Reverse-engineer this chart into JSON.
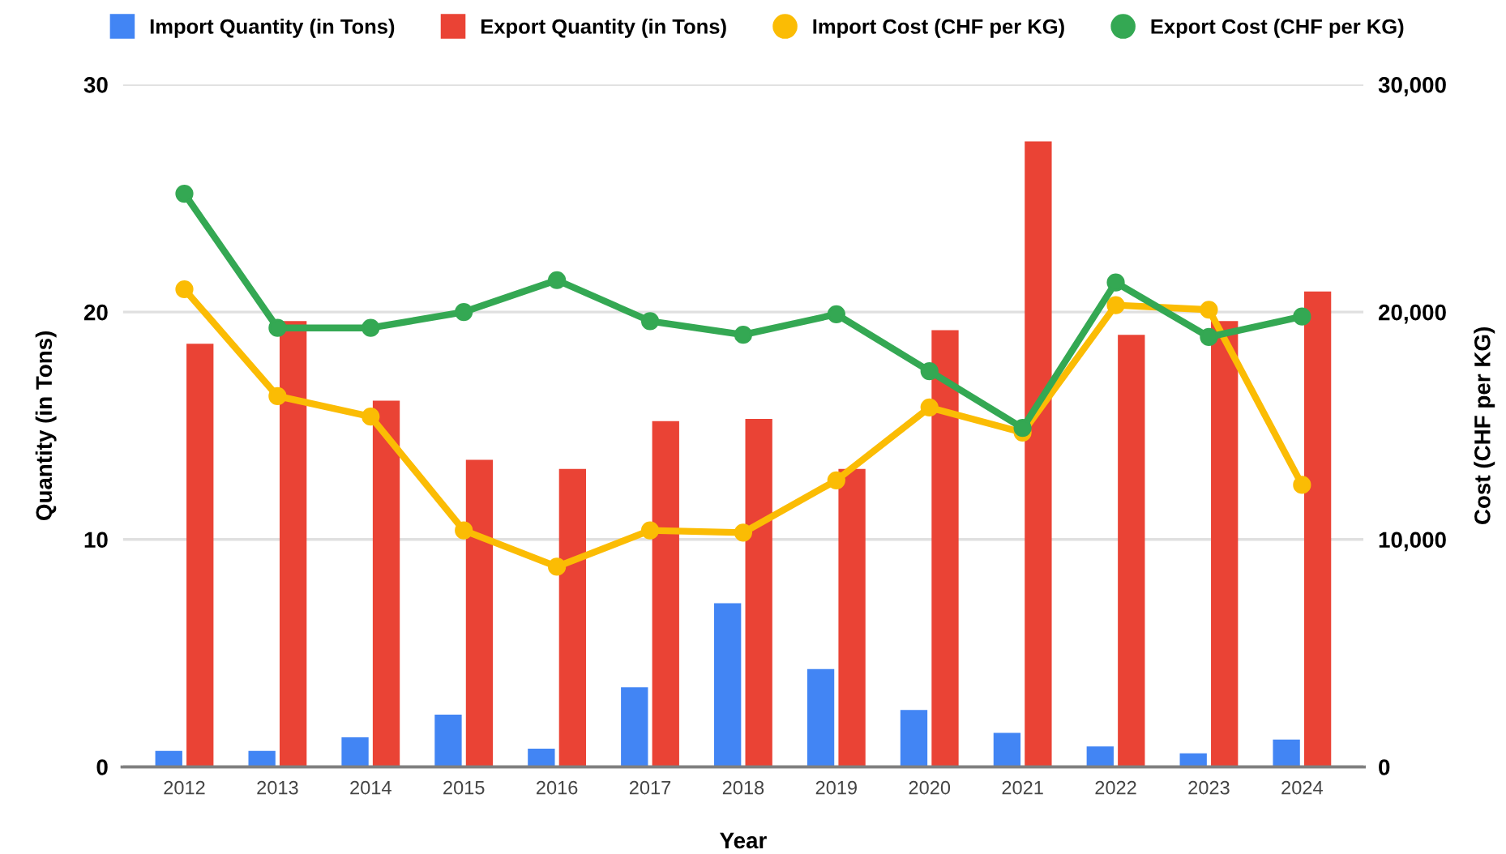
{
  "chart_data": {
    "type": "bar",
    "categories": [
      "2012",
      "2013",
      "2014",
      "2015",
      "2016",
      "2017",
      "2018",
      "2019",
      "2020",
      "2021",
      "2022",
      "2023",
      "2024"
    ],
    "xlabel": "Year",
    "ylabel": "Quantity (in Tons)",
    "y2label": "Cost (CHF per KG)",
    "series": [
      {
        "name": "Import Quantity (in Tons)",
        "axis": "y",
        "color": "#4285f4",
        "values": [
          0.7,
          0.7,
          1.3,
          2.3,
          0.8,
          3.5,
          7.2,
          4.3,
          2.5,
          1.5,
          0.9,
          0.6,
          1.2
        ]
      },
      {
        "name": "Export Quantity (in Tons)",
        "axis": "y",
        "color": "#ea4335",
        "values": [
          18.6,
          19.6,
          16.1,
          13.5,
          13.1,
          15.2,
          15.3,
          13.1,
          19.2,
          27.5,
          19.0,
          19.6,
          20.9
        ]
      },
      {
        "name": "Import Cost (CHF per KG)",
        "type": "line",
        "axis": "y2",
        "color": "#fbbc04",
        "values": [
          21000,
          16300,
          15400,
          10400,
          8800,
          10400,
          10300,
          12600,
          15800,
          14700,
          20300,
          20100,
          12400
        ]
      },
      {
        "name": "Export Cost (CHF per KG)",
        "type": "line",
        "axis": "y2",
        "color": "#34a853",
        "values": [
          25200,
          19300,
          19300,
          20000,
          21400,
          19600,
          19000,
          19900,
          17400,
          14900,
          21300,
          18900,
          19800
        ]
      }
    ],
    "ylim": [
      0,
      30
    ],
    "yticks": [
      0,
      10,
      20,
      30
    ],
    "y2lim": [
      0,
      30000
    ],
    "y2ticks": [
      0,
      {
        "value": 10000,
        "label": "10,000"
      },
      {
        "value": 20000,
        "label": "20,000"
      },
      {
        "value": 30000,
        "label": "30,000"
      }
    ],
    "grid": "y",
    "legend": "top",
    "marker": "circle",
    "line_style": "solid"
  }
}
